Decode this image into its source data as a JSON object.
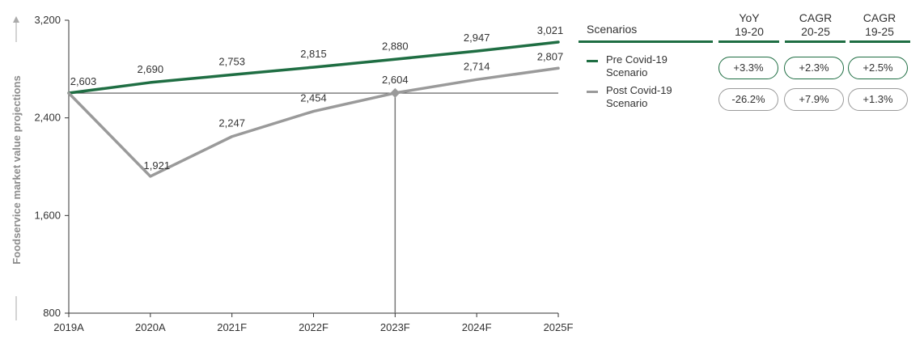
{
  "chart_data": {
    "type": "line",
    "ylabel": "Foodservice market value projections",
    "ylim": [
      800,
      3200
    ],
    "yticks": [
      800,
      1600,
      2400,
      3200
    ],
    "ytick_labels": [
      "800",
      "1,600",
      "2,400",
      "3,200"
    ],
    "categories": [
      "2019A",
      "2020A",
      "2021F",
      "2022F",
      "2023F",
      "2024F",
      "2025F"
    ],
    "series": [
      {
        "name": "Pre Covid-19 Scenario",
        "color": "#1f6e43",
        "values": [
          2603,
          2690,
          2753,
          2815,
          2880,
          2947,
          3021
        ],
        "labels": [
          "2,603",
          "2,690",
          "2,753",
          "2,815",
          "2,880",
          "2,947",
          "3,021"
        ]
      },
      {
        "name": "Post Covid-19 Scenario",
        "color": "#9a9a9a",
        "values": [
          2603,
          1921,
          2247,
          2454,
          2604,
          2714,
          2807
        ],
        "labels": [
          "",
          "1,921",
          "2,247",
          "2,454",
          "2,604",
          "2,714",
          "2,807"
        ]
      }
    ],
    "reference_line": {
      "value": 2603,
      "color": "#555555"
    },
    "marker": {
      "category": "2023F",
      "value": 2604,
      "color": "#9a9a9a"
    }
  },
  "panel": {
    "title": "Scenarios",
    "columns": [
      {
        "line1": "YoY",
        "line2": "19-20"
      },
      {
        "line1": "CAGR",
        "line2": "20-25"
      },
      {
        "line1": "CAGR",
        "line2": "19-25"
      }
    ],
    "rows": [
      {
        "label_line1": "Pre Covid-19",
        "label_line2": "Scenario",
        "values": [
          "+3.3%",
          "+2.3%",
          "+2.5%"
        ]
      },
      {
        "label_line1": "Post Covid-19",
        "label_line2": "Scenario",
        "values": [
          "-26.2%",
          "+7.9%",
          "+1.3%"
        ]
      }
    ]
  }
}
